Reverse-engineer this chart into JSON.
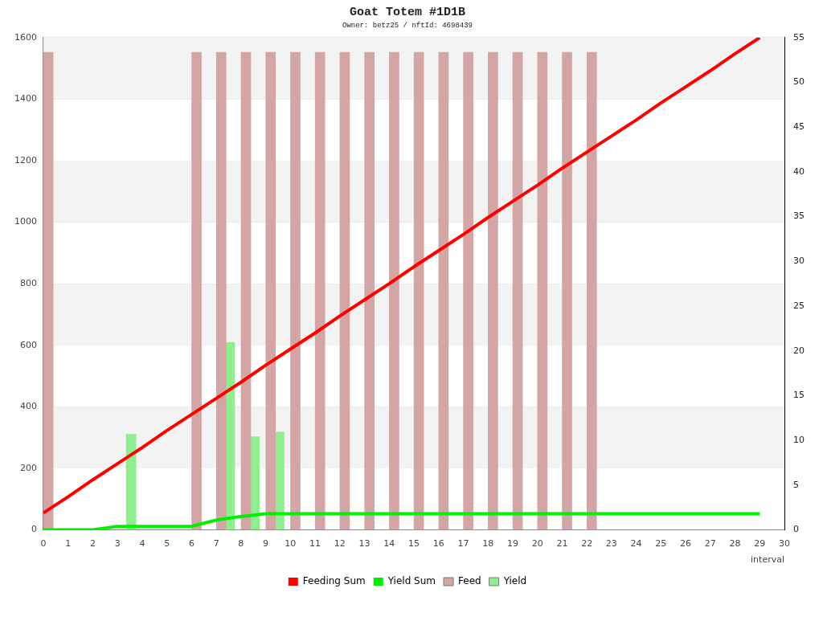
{
  "chart_data": {
    "type": "bar",
    "title": "Goat Totem #1D1B",
    "subtitle": "Owner: betz25 / nftId: 4698439",
    "xlabel": "interval",
    "xlim": [
      0,
      30
    ],
    "xticks": [
      0,
      1,
      2,
      3,
      4,
      5,
      6,
      7,
      8,
      9,
      10,
      11,
      12,
      13,
      14,
      15,
      16,
      17,
      18,
      19,
      20,
      21,
      22,
      23,
      24,
      25,
      26,
      27,
      28,
      29,
      30
    ],
    "ylim": [
      0,
      1600
    ],
    "yticks": [
      0,
      200,
      400,
      600,
      800,
      1000,
      1200,
      1400,
      1600
    ],
    "y2lim": [
      0,
      55
    ],
    "y2ticks": [
      0,
      5,
      10,
      15,
      20,
      25,
      30,
      35,
      40,
      45,
      50,
      55
    ],
    "grid": "y",
    "legend": "bottom",
    "marker": "none",
    "series": [
      {
        "name": "Feeding Sum",
        "type": "line",
        "axis": "y2",
        "color": "#ff0000",
        "x": [
          0,
          1,
          2,
          3,
          4,
          5,
          6,
          7,
          8,
          9,
          10,
          11,
          12,
          13,
          14,
          15,
          16,
          17,
          18,
          19,
          20,
          21,
          22,
          23,
          24,
          25,
          26,
          27,
          28,
          29
        ],
        "values": [
          1.9,
          3.7,
          5.6,
          7.4,
          9.2,
          11.1,
          12.9,
          14.7,
          16.5,
          18.4,
          20.2,
          22.0,
          23.9,
          25.7,
          27.5,
          29.4,
          31.2,
          33.0,
          34.9,
          36.7,
          38.5,
          40.4,
          42.2,
          44.0,
          45.8,
          47.7,
          49.5,
          51.3,
          53.2,
          55.0
        ]
      },
      {
        "name": "Yield Sum",
        "type": "line",
        "axis": "y2",
        "color": "#00ee00",
        "x": [
          0,
          1,
          2,
          3,
          4,
          5,
          6,
          7,
          8,
          9,
          10,
          11,
          12,
          13,
          14,
          15,
          16,
          17,
          18,
          19,
          20,
          21,
          22,
          23,
          24,
          25,
          26,
          27,
          28,
          29
        ],
        "values": [
          0,
          0,
          0,
          0.4,
          0.4,
          0.4,
          0.4,
          1.1,
          1.5,
          1.8,
          1.8,
          1.8,
          1.8,
          1.8,
          1.8,
          1.8,
          1.8,
          1.8,
          1.8,
          1.8,
          1.8,
          1.8,
          1.8,
          1.8,
          1.8,
          1.8,
          1.8,
          1.8,
          1.8,
          1.8
        ]
      },
      {
        "name": "Feed",
        "type": "bar",
        "color": "#d4a5a5",
        "x": [
          0.2,
          6.2,
          7.2,
          8.2,
          9.2,
          10.2,
          11.2,
          12.2,
          13.2,
          14.2,
          15.2,
          16.2,
          17.2,
          18.2,
          19.2,
          20.2,
          21.2,
          22.2
        ],
        "values": [
          1552,
          1552,
          1552,
          1552,
          1552,
          1552,
          1552,
          1552,
          1552,
          1552,
          1552,
          1552,
          1552,
          1552,
          1552,
          1552,
          1552,
          1552
        ]
      },
      {
        "name": "Yield",
        "type": "bar",
        "color": "#90ee90",
        "x": [
          3.55,
          7.55,
          8.55,
          9.55
        ],
        "values": [
          311,
          609,
          303,
          318
        ]
      }
    ]
  }
}
